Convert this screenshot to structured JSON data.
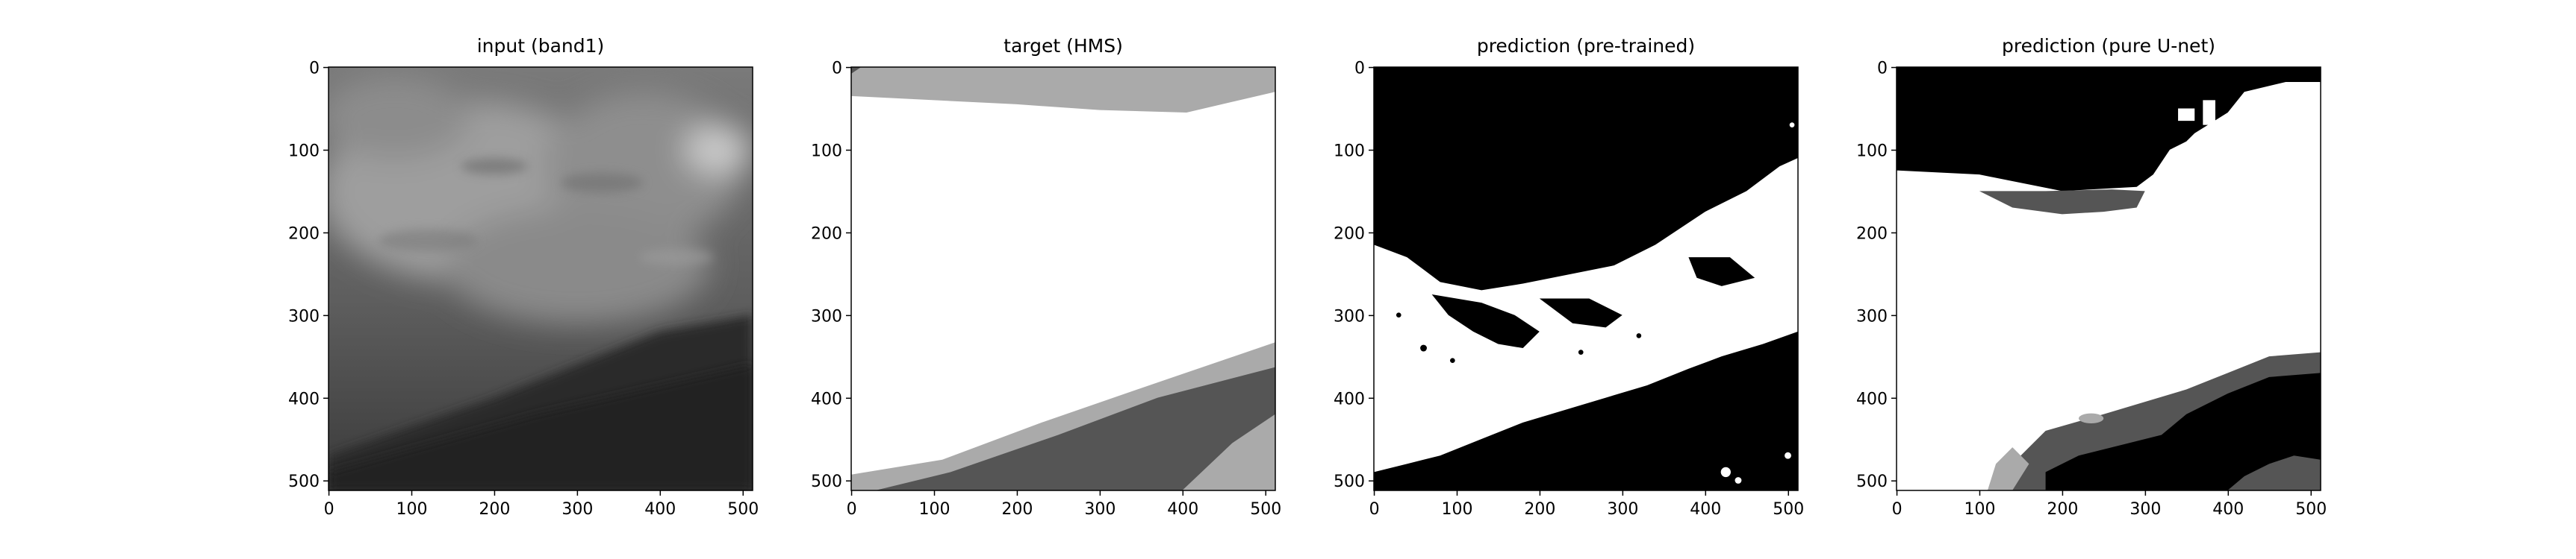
{
  "figure": {
    "panels": [
      {
        "id": "band1",
        "title": "input (band1)",
        "yticks": [
          "0",
          "100",
          "200",
          "300",
          "400",
          "500"
        ],
        "xticks": [
          "0",
          "100",
          "200",
          "300",
          "400",
          "500"
        ]
      },
      {
        "id": "hms",
        "title": "target (HMS)",
        "yticks": [
          "0",
          "100",
          "200",
          "300",
          "400",
          "500"
        ],
        "xticks": [
          "0",
          "100",
          "200",
          "300",
          "400",
          "500"
        ]
      },
      {
        "id": "pretrained",
        "title": "prediction (pre-trained)",
        "yticks": [
          "0",
          "100",
          "200",
          "300",
          "400",
          "500"
        ],
        "xticks": [
          "0",
          "100",
          "200",
          "300",
          "400",
          "500"
        ]
      },
      {
        "id": "unet",
        "title": "prediction (pure U-net)",
        "yticks": [
          "0",
          "100",
          "200",
          "300",
          "400",
          "500"
        ],
        "xticks": [
          "0",
          "100",
          "200",
          "300",
          "400",
          "500"
        ]
      }
    ],
    "image_extent": [
      0,
      511
    ],
    "tick_values": [
      0,
      100,
      200,
      300,
      400,
      500
    ],
    "colors": {
      "black": "#000000",
      "dark_gray": "#555555",
      "light_gray": "#aaaaaa",
      "white": "#ffffff",
      "satellite_light": "#a8a8a8",
      "satellite_mid": "#6c6c6c",
      "satellite_dark": "#2a2a2a"
    }
  }
}
